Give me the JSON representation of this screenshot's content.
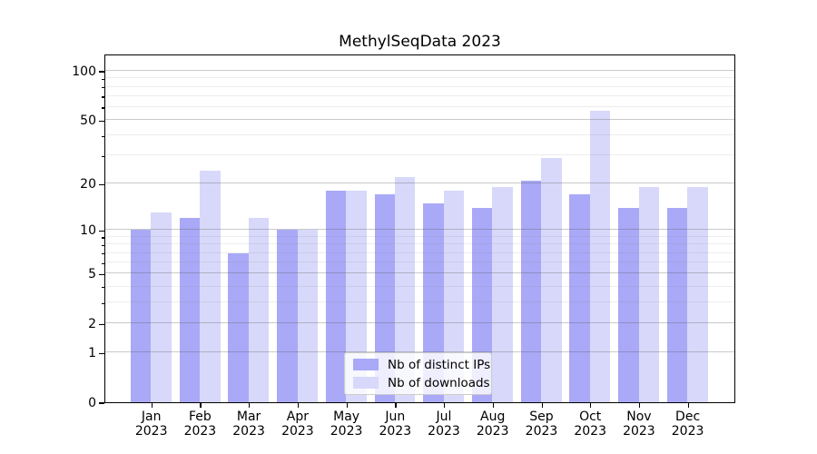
{
  "chart_data": {
    "type": "bar",
    "title": "MethylSeqData 2023",
    "yscale": "log1p",
    "ylim": [
      0,
      127
    ],
    "grid": true,
    "legend_position": "bottom-center",
    "background": "#ffffff",
    "yticks": [
      {
        "label": "100",
        "value": 100
      },
      {
        "label": "50",
        "value": 50
      },
      {
        "label": "20",
        "value": 20
      },
      {
        "label": "10",
        "value": 10
      },
      {
        "label": "5",
        "value": 5
      },
      {
        "label": "2",
        "value": 2
      },
      {
        "label": "1",
        "value": 1
      },
      {
        "label": "0",
        "value": 0
      }
    ],
    "ygrid_minor": [
      3,
      4,
      6,
      7,
      8,
      9,
      30,
      40,
      60,
      70,
      80,
      90
    ],
    "categories": [
      {
        "month": "Jan",
        "year": "2023"
      },
      {
        "month": "Feb",
        "year": "2023"
      },
      {
        "month": "Mar",
        "year": "2023"
      },
      {
        "month": "Apr",
        "year": "2023"
      },
      {
        "month": "May",
        "year": "2023"
      },
      {
        "month": "Jun",
        "year": "2023"
      },
      {
        "month": "Jul",
        "year": "2023"
      },
      {
        "month": "Aug",
        "year": "2023"
      },
      {
        "month": "Sep",
        "year": "2023"
      },
      {
        "month": "Oct",
        "year": "2023"
      },
      {
        "month": "Nov",
        "year": "2023"
      },
      {
        "month": "Dec",
        "year": "2023"
      }
    ],
    "series": [
      {
        "name": "Nb of distinct IPs",
        "color": "#a9a9f7",
        "values": [
          10,
          12,
          7,
          10,
          18,
          17,
          15,
          14,
          21,
          17,
          14,
          14
        ]
      },
      {
        "name": "Nb of downloads",
        "color": "#d8d8fa",
        "values": [
          13,
          24,
          12,
          10,
          18,
          22,
          18,
          19,
          29,
          57,
          19,
          19
        ]
      }
    ]
  }
}
